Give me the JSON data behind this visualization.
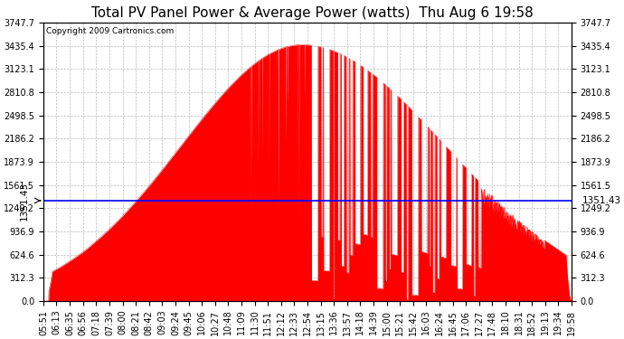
{
  "title": "Total PV Panel Power & Average Power (watts)  Thu Aug 6 19:58",
  "copyright": "Copyright 2009 Cartronics.com",
  "average_power": 1351.43,
  "y_max": 3747.7,
  "y_ticks": [
    0.0,
    312.3,
    624.6,
    936.9,
    1249.2,
    1561.5,
    1873.9,
    2186.2,
    2498.5,
    2810.8,
    3123.1,
    3435.4,
    3747.7
  ],
  "x_labels": [
    "05:51",
    "06:13",
    "06:35",
    "06:56",
    "07:18",
    "07:39",
    "08:00",
    "08:21",
    "08:42",
    "09:03",
    "09:24",
    "09:45",
    "10:06",
    "10:27",
    "10:48",
    "11:09",
    "11:30",
    "11:51",
    "12:12",
    "12:33",
    "12:54",
    "13:15",
    "13:36",
    "13:57",
    "14:18",
    "14:39",
    "15:00",
    "15:21",
    "15:42",
    "16:03",
    "16:24",
    "16:45",
    "17:06",
    "17:27",
    "17:48",
    "18:10",
    "18:31",
    "18:52",
    "19:13",
    "19:34",
    "19:58"
  ],
  "fill_color": "#FF0000",
  "line_color": "#CC0000",
  "avg_line_color": "#0000FF",
  "background_color": "#FFFFFF",
  "grid_color": "#BBBBBB",
  "title_fontsize": 11,
  "copyright_fontsize": 6.5,
  "label_fontsize": 7,
  "avg_label_fontsize": 7.5,
  "fig_width": 6.9,
  "fig_height": 3.75,
  "dpi": 100
}
